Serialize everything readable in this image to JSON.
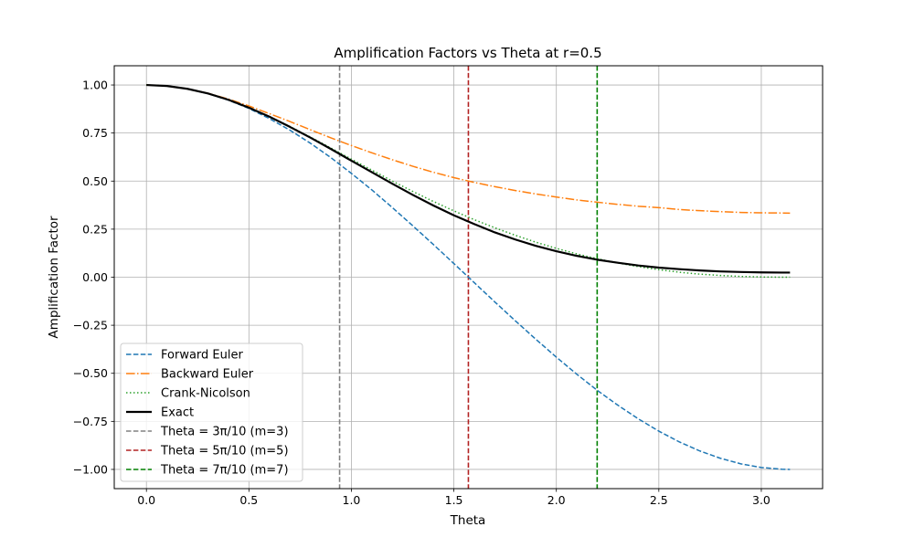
{
  "chart_data": {
    "type": "line",
    "title": "Amplification Factors vs Theta at r=0.5",
    "xlabel": "Theta",
    "ylabel": "Amplification Factor",
    "xlim": [
      -0.157,
      3.299
    ],
    "ylim": [
      -1.1,
      1.1
    ],
    "x_ticks": [
      0.0,
      0.5,
      1.0,
      1.5,
      2.0,
      2.5,
      3.0
    ],
    "x_tick_labels": [
      "0.0",
      "0.5",
      "1.0",
      "1.5",
      "2.0",
      "2.5",
      "3.0"
    ],
    "y_ticks": [
      1.0,
      0.75,
      0.5,
      0.25,
      0.0,
      -0.25,
      -0.5,
      -0.75,
      -1.0
    ],
    "y_tick_labels": [
      "1.00",
      "0.75",
      "0.50",
      "0.25",
      "0.00",
      "−0.25",
      "−0.50",
      "−0.75",
      "−1.00"
    ],
    "grid": true,
    "legend_position": "lower-left",
    "x": [
      0.0,
      0.1,
      0.2,
      0.3,
      0.4,
      0.5,
      0.6,
      0.7,
      0.8,
      0.9,
      1.0,
      1.1,
      1.2,
      1.3,
      1.4,
      1.5,
      1.6,
      1.7,
      1.8,
      1.9,
      2.0,
      2.1,
      2.2,
      2.3,
      2.4,
      2.5,
      2.6,
      2.7,
      2.8,
      2.9,
      3.0,
      3.1,
      3.14
    ],
    "series": [
      {
        "name": "Forward Euler",
        "color": "#1f77b4",
        "style": "dashed",
        "values": [
          1.0,
          0.995,
          0.98,
          0.955,
          0.921,
          0.878,
          0.825,
          0.765,
          0.697,
          0.622,
          0.54,
          0.454,
          0.362,
          0.267,
          0.17,
          0.071,
          -0.029,
          -0.129,
          -0.227,
          -0.323,
          -0.416,
          -0.505,
          -0.589,
          -0.666,
          -0.737,
          -0.801,
          -0.857,
          -0.904,
          -0.942,
          -0.971,
          -0.99,
          -0.999,
          -1.0
        ]
      },
      {
        "name": "Backward Euler",
        "color": "#ff7f0e",
        "style": "dashdot",
        "values": [
          1.0,
          0.995,
          0.98,
          0.957,
          0.927,
          0.891,
          0.851,
          0.81,
          0.767,
          0.725,
          0.685,
          0.647,
          0.611,
          0.577,
          0.546,
          0.518,
          0.493,
          0.471,
          0.451,
          0.433,
          0.417,
          0.402,
          0.39,
          0.379,
          0.369,
          0.362,
          0.352,
          0.346,
          0.341,
          0.337,
          0.335,
          0.334,
          0.333
        ]
      },
      {
        "name": "Crank-Nicolson",
        "color": "#2ca02c",
        "style": "dotted",
        "values": [
          1.0,
          0.995,
          0.98,
          0.956,
          0.923,
          0.883,
          0.836,
          0.784,
          0.729,
          0.672,
          0.614,
          0.557,
          0.5,
          0.446,
          0.394,
          0.345,
          0.299,
          0.257,
          0.218,
          0.182,
          0.15,
          0.121,
          0.096,
          0.074,
          0.055,
          0.039,
          0.026,
          0.016,
          0.009,
          0.004,
          0.001,
          0.0,
          0.0
        ]
      },
      {
        "name": "Exact",
        "color": "#000000",
        "style": "solid",
        "values": [
          1.0,
          0.995,
          0.98,
          0.956,
          0.923,
          0.882,
          0.835,
          0.782,
          0.726,
          0.667,
          0.606,
          0.546,
          0.486,
          0.428,
          0.373,
          0.322,
          0.276,
          0.233,
          0.196,
          0.163,
          0.135,
          0.111,
          0.091,
          0.075,
          0.061,
          0.05,
          0.042,
          0.035,
          0.03,
          0.027,
          0.025,
          0.024,
          0.024
        ]
      }
    ],
    "vlines": [
      {
        "name": "Theta = 3π/10 (m=3)",
        "x": 0.9425,
        "color": "#808080",
        "style": "dashed"
      },
      {
        "name": "Theta = 5π/10 (m=5)",
        "x": 1.5708,
        "color": "#b22222",
        "style": "dashed"
      },
      {
        "name": "Theta = 7π/10 (m=7)",
        "x": 2.1991,
        "color": "#008000",
        "style": "dashed"
      }
    ]
  }
}
